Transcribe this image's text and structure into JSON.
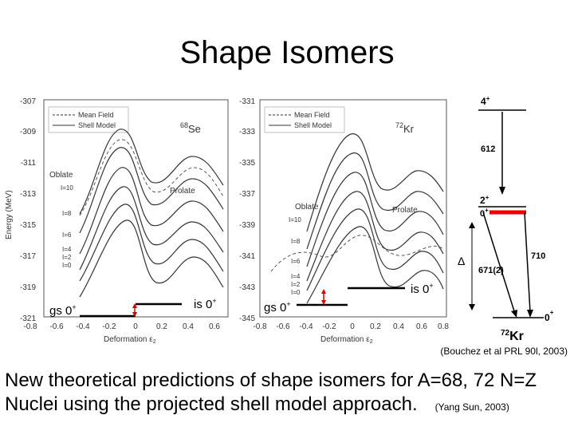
{
  "title": "Shape Isomers",
  "citation": "(Bouchez et al PRL 90l, 2003)",
  "caption": {
    "line1": "New theoretical predictions of shape isomers for A=68, 72 N=Z",
    "line2": "Nuclei using the projected shell model approach.",
    "ref": "(Yang Sun, 2003)"
  },
  "plot_left": {
    "nucleus_mass": "68",
    "nucleus_symbol": "Se",
    "y_ticks": [
      "-307",
      "-309",
      "-311",
      "-313",
      "-315",
      "-317",
      "-319",
      "-321"
    ],
    "x_ticks": [
      "-0.8",
      "-0.6",
      "-0.4",
      "-0.2",
      "0",
      "0.2",
      "0.4",
      "0.6"
    ],
    "ylabel": "Energy (MeV)",
    "xlabel": "Deformation ε",
    "xlabel_sub": "2",
    "legend": [
      "Mean Field",
      "Shell Model"
    ],
    "oblate_label": "Oblate",
    "prolate_label": "Prolate",
    "spin_labels": [
      "I=10",
      "I=8",
      "I=6",
      "I=4",
      "I=2",
      "I=0"
    ],
    "gs_label": "gs 0",
    "is_label": "is 0",
    "plus": "+"
  },
  "plot_right": {
    "nucleus_mass": "72",
    "nucleus_symbol": "Kr",
    "y_ticks": [
      "-331",
      "-333",
      "-335",
      "-337",
      "-339",
      "-341",
      "-343",
      "-345"
    ],
    "x_ticks": [
      "-0.8",
      "-0.6",
      "-0.4",
      "-0.2",
      "0",
      "0.2",
      "0.4",
      "0.6",
      "0.8"
    ],
    "xlabel": "Deformation ε",
    "xlabel_sub": "2",
    "legend": [
      "Mean Field",
      "Shell Model"
    ],
    "oblate_label": "Oblate",
    "prolate_label": "Prolate",
    "spin_labels": [
      "I=10",
      "I=8",
      "I=6",
      "I=4",
      "I=2",
      "I=0"
    ],
    "gs_label": "gs 0",
    "is_label": "is 0",
    "plus": "+"
  },
  "level_scheme": {
    "level_top": "4",
    "level_2": "2",
    "level_0iso": "0",
    "level_gs": "0",
    "plus": "+",
    "e_612": "612",
    "e_710": "710",
    "e_671": "671(2)",
    "delta": "Δ",
    "nucleus_mass": "72",
    "nucleus_symbol": "Kr"
  }
}
